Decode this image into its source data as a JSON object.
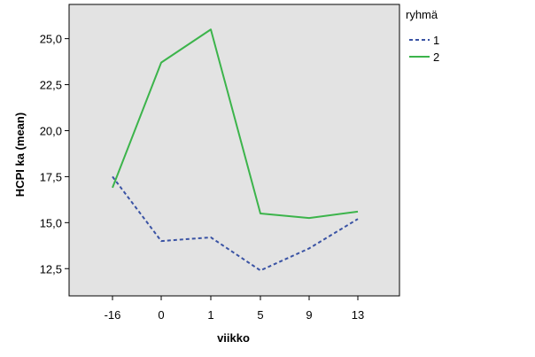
{
  "chart_data": {
    "type": "line",
    "title": "",
    "xlabel": "viikko",
    "ylabel": "HCPI ka (mean)",
    "categories": [
      "-16",
      "0",
      "1",
      "5",
      "9",
      "13"
    ],
    "ylim": [
      11.02,
      26.86
    ],
    "yticks": [
      12.5,
      15.0,
      17.5,
      20.0,
      22.5,
      25.0
    ],
    "ytick_labels": [
      "12,5",
      "15,0",
      "17,5",
      "20,0",
      "22,5",
      "25,0"
    ],
    "grid": false,
    "plot_background": "#e3e3e3",
    "legend": {
      "title": "ryhmä",
      "position": "right-top"
    },
    "series": [
      {
        "name": "1",
        "color": "#3a53a4",
        "style": "dashed",
        "values": [
          17.5,
          14.0,
          14.2,
          12.4,
          13.6,
          15.2
        ]
      },
      {
        "name": "2",
        "color": "#3cb44b",
        "style": "solid",
        "values": [
          16.9,
          23.7,
          25.5,
          15.5,
          15.25,
          15.6
        ]
      }
    ]
  }
}
